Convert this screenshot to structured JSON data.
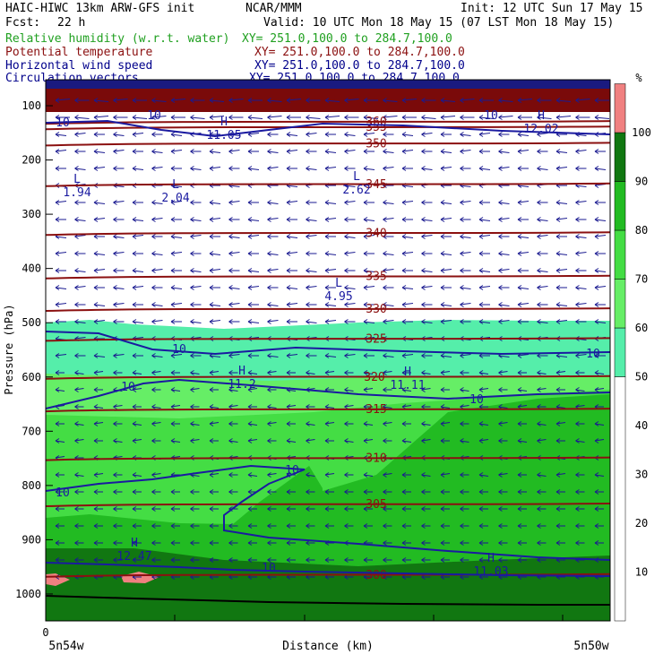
{
  "header": {
    "title": "HAIC-HIWC 13km ARW-GFS init",
    "org": "NCAR/MMM",
    "init": "Init: 12 UTC Sun 17 May 15",
    "fcst_label": "Fcst:",
    "fcst_value": "22 h",
    "valid": "Valid: 10 UTC Mon 18 May 15 (07 LST Mon 18 May 15)"
  },
  "fields": [
    {
      "name": "Relative humidity (w.r.t. water)",
      "xy": "XY= 251.0,100.0 to 284.7,100.0",
      "color": "#20a020"
    },
    {
      "name": "Potential temperature",
      "xy": "XY= 251.0,100.0 to 284.7,100.0",
      "color": "#8b1010"
    },
    {
      "name": "Horizontal wind speed",
      "xy": "XY= 251.0,100.0 to 284.7,100.0",
      "color": "#00008b"
    },
    {
      "name": "Circulation vectors",
      "xy": "XY= 251.0,100.0 to 284.7,100.0",
      "color": "#00008b"
    }
  ],
  "chart_data": {
    "type": "heatmap",
    "ylabel": "Pressure (hPa)",
    "xlabel": "Distance (km)",
    "x_origin_label": "0",
    "x_left_label": "5n54w",
    "x_right_label": "5n50w",
    "y_ticks": [
      100,
      200,
      300,
      400,
      500,
      600,
      700,
      800,
      900,
      1000
    ],
    "ylim": [
      1050,
      50
    ],
    "colorbar": {
      "unit": "%",
      "ticks": [
        10,
        20,
        30,
        40,
        50,
        60,
        70,
        80,
        90,
        100
      ],
      "bands": [
        {
          "from": 0,
          "to": 50,
          "color": "#ffffff"
        },
        {
          "from": 50,
          "to": 60,
          "color": "#55eeaa"
        },
        {
          "from": 60,
          "to": 70,
          "color": "#66ee66"
        },
        {
          "from": 70,
          "to": 80,
          "color": "#44dd44"
        },
        {
          "from": 80,
          "to": 90,
          "color": "#22bb22"
        },
        {
          "from": 90,
          "to": 100,
          "color": "#117711"
        },
        {
          "from": 100,
          "to": 110,
          "color": "#f08080"
        }
      ]
    },
    "theta_contours": [
      {
        "label": "360",
        "p": 130
      },
      {
        "label": "355",
        "p": 140
      },
      {
        "label": "350",
        "p": 170
      },
      {
        "label": "345",
        "p": 245
      },
      {
        "label": "340",
        "p": 335
      },
      {
        "label": "335",
        "p": 415
      },
      {
        "label": "330",
        "p": 475
      },
      {
        "label": "325",
        "p": 530
      },
      {
        "label": "320",
        "p": 600
      },
      {
        "label": "315",
        "p": 660
      },
      {
        "label": "310",
        "p": 750
      },
      {
        "label": "305",
        "p": 835
      },
      {
        "label": "300",
        "p": 965
      }
    ],
    "wind_labels": [
      "10",
      "10",
      "10",
      "10",
      "10",
      "10",
      "10",
      "10",
      "10",
      "10"
    ],
    "extrema": [
      {
        "type": "H",
        "value": "11.05"
      },
      {
        "type": "H",
        "value": "12.02"
      },
      {
        "type": "L",
        "value": "1.94"
      },
      {
        "type": "L",
        "value": "2.04"
      },
      {
        "type": "L",
        "value": "2.62"
      },
      {
        "type": "L",
        "value": "4.95"
      },
      {
        "type": "H",
        "value": "11.2"
      },
      {
        "type": "H",
        "value": "11.11"
      },
      {
        "type": "H",
        "value": "12.47"
      },
      {
        "type": "H",
        "value": "11.03"
      }
    ]
  }
}
